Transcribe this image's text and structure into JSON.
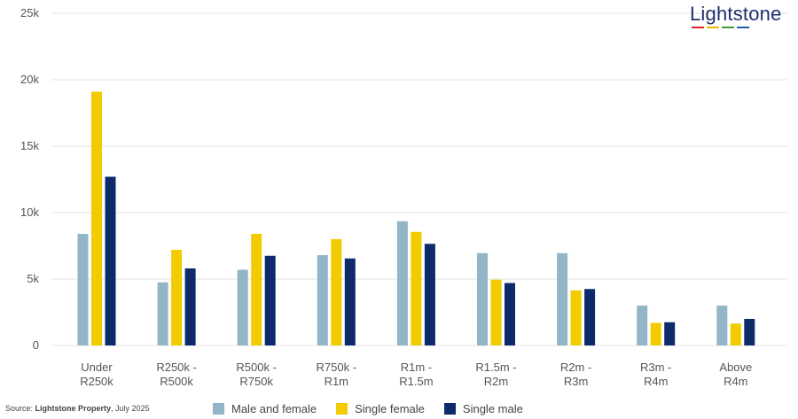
{
  "logo": {
    "text": "Lightstone",
    "stripe_colors": [
      "#d9262e",
      "#f2b705",
      "#3f9c35",
      "#1f5fa8"
    ]
  },
  "source": {
    "prefix": "Source: ",
    "name": "Lightstone Property",
    "suffix": ", July 2025"
  },
  "chart_data": {
    "type": "bar",
    "title": "",
    "xlabel": "",
    "ylabel": "",
    "ylim": [
      0,
      25000
    ],
    "yticks": [
      0,
      5000,
      10000,
      15000,
      20000,
      25000
    ],
    "ytick_labels": [
      "0",
      "5k",
      "10k",
      "15k",
      "20k",
      "25k"
    ],
    "grid": true,
    "legend_position": "bottom",
    "categories": [
      [
        "Under",
        "R250k"
      ],
      [
        "R250k -",
        "R500k"
      ],
      [
        "R500k -",
        "R750k"
      ],
      [
        "R750k -",
        "R1m"
      ],
      [
        "R1m -",
        "R1.5m"
      ],
      [
        "R1.5m -",
        "R2m"
      ],
      [
        "R2m -",
        "R3m"
      ],
      [
        "R3m -",
        "R4m"
      ],
      [
        "Above",
        "R4m"
      ]
    ],
    "series": [
      {
        "name": "Male and female",
        "color": "#93b5c8",
        "values": [
          8400,
          4750,
          5700,
          6800,
          9350,
          6950,
          6950,
          3000,
          3000
        ]
      },
      {
        "name": "Single female",
        "color": "#f2cc00",
        "values": [
          19100,
          7200,
          8400,
          8000,
          8550,
          4950,
          4150,
          1700,
          1650
        ]
      },
      {
        "name": "Single male",
        "color": "#0d2a6b",
        "values": [
          12700,
          5800,
          6750,
          6550,
          7650,
          4700,
          4250,
          1750,
          2000
        ]
      }
    ]
  }
}
